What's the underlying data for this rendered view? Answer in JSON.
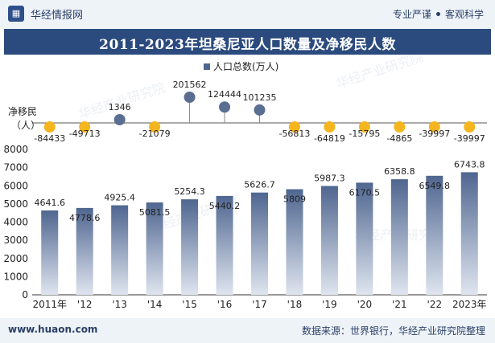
{
  "header": {
    "brand": "华经情报网",
    "tagline_left": "专业严谨",
    "tagline_right": "客观科学",
    "title": "2011-2023年坦桑尼亚人口数量及净移民人数"
  },
  "footer": {
    "site": "www.huaon.com",
    "source": "数据来源：世界银行，华经产业研究院整理"
  },
  "watermark": "华经产业研究院",
  "chart_data": {
    "type": "bar",
    "categories": [
      "2011年",
      "'12",
      "'13",
      "'14",
      "'15",
      "'16",
      "'17",
      "'18",
      "'19",
      "'20",
      "'21",
      "'22",
      "2023年"
    ],
    "series": [
      {
        "name": "人口总数(万人)",
        "values": [
          4641.6,
          4778.6,
          4925.4,
          5081.5,
          5254.3,
          5440.2,
          5626.7,
          5809,
          5987.3,
          6170.5,
          6358.8,
          6549.8,
          6743.8
        ],
        "value_labels": [
          "4641.6",
          "4778.6",
          "4925.4",
          "5081.5",
          "5254.3",
          "5440.2",
          "5626.7",
          "5809",
          "5987.3",
          "6170.5",
          "6358.8",
          "6549.8",
          "6743.8"
        ]
      },
      {
        "name": "净移民（人）",
        "values": [
          -84433,
          -49713,
          1346,
          -21079,
          201562,
          124444,
          101235,
          -56813,
          -64819,
          -15795,
          -4865,
          -39997,
          -39997
        ],
        "value_labels": [
          "-84433",
          "-49713",
          "1346",
          "-21079",
          "201562",
          "124444",
          "101235",
          "-56813",
          "-64819",
          "-15795",
          "-4865",
          "-39997",
          "-39997"
        ]
      }
    ],
    "ylim": [
      0,
      8000
    ],
    "yticks": [
      "0",
      "1000",
      "2000",
      "3000",
      "4000",
      "5000",
      "6000",
      "7000",
      "8000"
    ],
    "legend": "top-center",
    "colors": {
      "bar": "#4f6690",
      "positive_marker": "#5a6e92",
      "negative_marker": "#f5b51f"
    }
  }
}
